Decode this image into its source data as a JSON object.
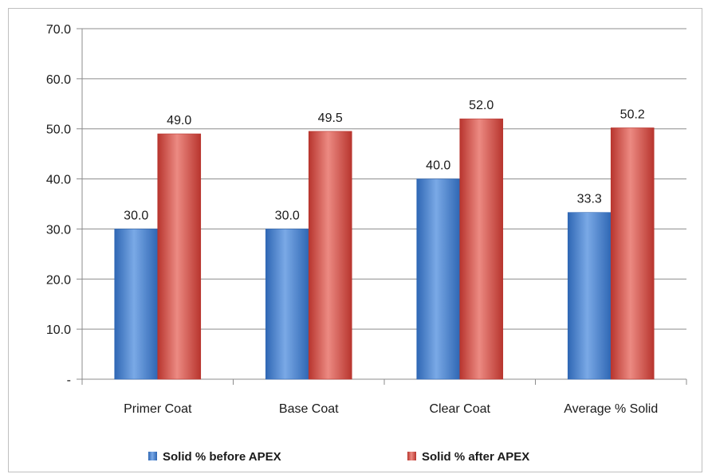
{
  "chart_data": {
    "type": "bar",
    "categories": [
      "Primer Coat",
      "Base Coat",
      "Clear Coat",
      "Average % Solid"
    ],
    "series": [
      {
        "name": "Solid % before APEX",
        "values": [
          30.0,
          30.0,
          40.0,
          33.3
        ],
        "color": "#4a86d4",
        "color_dark": "#2f67b4",
        "color_light": "#7aa9e6"
      },
      {
        "name": "Solid % after APEX",
        "values": [
          49.0,
          49.5,
          52.0,
          50.2
        ],
        "color": "#d9534a",
        "color_dark": "#b8352e",
        "color_light": "#ec8a82"
      }
    ],
    "data_labels": [
      [
        "30.0",
        "30.0",
        "40.0",
        "33.3"
      ],
      [
        "49.0",
        "49.5",
        "52.0",
        "50.2"
      ]
    ],
    "y_ticks": [
      0,
      10,
      20,
      30,
      40,
      50,
      60,
      70
    ],
    "y_tick_labels": [
      "-",
      "10.0",
      "20.0",
      "30.0",
      "40.0",
      "50.0",
      "60.0",
      "70.0"
    ],
    "ylim": [
      0,
      70
    ],
    "grid": true,
    "legend_position": "bottom",
    "title": "",
    "xlabel": "",
    "ylabel": ""
  }
}
